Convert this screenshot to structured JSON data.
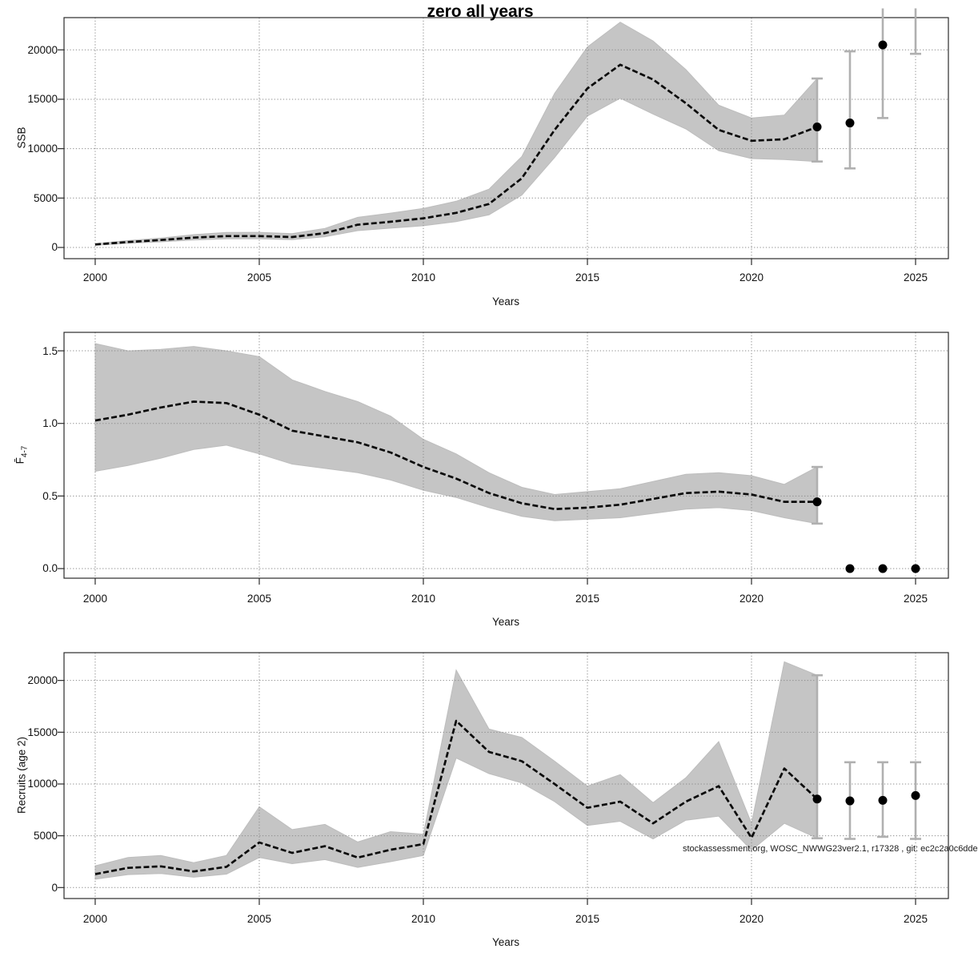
{
  "title": "zero all years",
  "watermark": "stockassessment.org, WOSC_NWWG23ver2.1, r17328 , git: ec2c2a0c6dde",
  "colors": {
    "band": "#c5c5c5",
    "band_edge": "#bdbdbd",
    "fit_line": "#0a0a0a",
    "grid": "#8c8c8c",
    "box": "#2b2b2b",
    "errorbar": "#b0b0b0",
    "point": "#000000"
  },
  "chart_data": [
    {
      "type": "line",
      "title": "",
      "ylabel": "SSB",
      "ylabel_sub": "",
      "xlabel": "Years",
      "xlim": [
        1999.05,
        2026.0
      ],
      "ylim": [
        -1135,
        23263
      ],
      "x_tick_values": [
        2000,
        2005,
        2010,
        2015,
        2020,
        2025
      ],
      "x_tick_labels": [
        "2000",
        "2005",
        "2010",
        "2015",
        "2020",
        "2025"
      ],
      "y_tick_values": [
        0,
        5000,
        10000,
        15000,
        20000
      ],
      "y_tick_labels": [
        "0",
        "5000",
        "10000",
        "15000",
        "20000"
      ],
      "grid": true,
      "years": [
        2000,
        2001,
        2002,
        2003,
        2004,
        2005,
        2006,
        2007,
        2008,
        2009,
        2010,
        2011,
        2012,
        2013,
        2014,
        2015,
        2016,
        2017,
        2018,
        2019,
        2020,
        2021,
        2022
      ],
      "fit": [
        300,
        550,
        750,
        1000,
        1150,
        1150,
        1050,
        1450,
        2300,
        2600,
        2950,
        3500,
        4400,
        7000,
        11900,
        16100,
        18500,
        17000,
        14600,
        11900,
        10800,
        10950,
        12200
      ],
      "lower": [
        230,
        420,
        570,
        760,
        870,
        870,
        790,
        1090,
        1700,
        1950,
        2200,
        2620,
        3300,
        5300,
        9100,
        13300,
        15100,
        13500,
        12000,
        9800,
        9000,
        8900,
        8700
      ],
      "upper": [
        390,
        700,
        950,
        1300,
        1520,
        1530,
        1400,
        1930,
        3050,
        3480,
        3950,
        4680,
        5900,
        9200,
        15600,
        20300,
        22800,
        20900,
        18000,
        14400,
        13100,
        13400,
        17100
      ],
      "forecast": [
        {
          "year": 2022,
          "value": 12200,
          "lo": 8700,
          "hi": 17100
        },
        {
          "year": 2023,
          "value": 12600,
          "lo": 8000,
          "hi": 19850
        },
        {
          "year": 2024,
          "value": 20500,
          "lo": 13100,
          "hi": 24200,
          "hi_open": true
        },
        {
          "year": 2025,
          "value": null,
          "lo": 19600,
          "hi": 24200,
          "hi_open": true
        }
      ]
    },
    {
      "type": "line",
      "title": "",
      "ylabel": "F̄",
      "ylabel_sub": "4-7",
      "xlabel": "Years",
      "xlim": [
        1999.05,
        2026.0
      ],
      "ylim": [
        -0.0662,
        1.6272
      ],
      "x_tick_values": [
        2000,
        2005,
        2010,
        2015,
        2020,
        2025
      ],
      "x_tick_labels": [
        "2000",
        "2005",
        "2010",
        "2015",
        "2020",
        "2025"
      ],
      "y_tick_values": [
        0.0,
        0.5,
        1.0,
        1.5
      ],
      "y_tick_labels": [
        "0.0",
        "0.5",
        "1.0",
        "1.5"
      ],
      "grid": true,
      "years": [
        2000,
        2001,
        2002,
        2003,
        2004,
        2005,
        2006,
        2007,
        2008,
        2009,
        2010,
        2011,
        2012,
        2013,
        2014,
        2015,
        2016,
        2017,
        2018,
        2019,
        2020,
        2021,
        2022
      ],
      "fit": [
        1.02,
        1.06,
        1.11,
        1.15,
        1.14,
        1.06,
        0.95,
        0.91,
        0.87,
        0.8,
        0.7,
        0.62,
        0.52,
        0.45,
        0.41,
        0.42,
        0.44,
        0.48,
        0.52,
        0.53,
        0.51,
        0.46,
        0.46
      ],
      "lower": [
        0.67,
        0.71,
        0.76,
        0.82,
        0.85,
        0.79,
        0.72,
        0.69,
        0.66,
        0.61,
        0.54,
        0.49,
        0.42,
        0.36,
        0.33,
        0.34,
        0.35,
        0.38,
        0.41,
        0.42,
        0.4,
        0.35,
        0.31
      ],
      "upper": [
        1.55,
        1.5,
        1.51,
        1.53,
        1.5,
        1.46,
        1.3,
        1.22,
        1.15,
        1.05,
        0.89,
        0.79,
        0.66,
        0.56,
        0.51,
        0.53,
        0.55,
        0.6,
        0.65,
        0.66,
        0.64,
        0.58,
        0.7
      ],
      "forecast": [
        {
          "year": 2022,
          "value": 0.46,
          "lo": 0.31,
          "hi": 0.7
        },
        {
          "year": 2023,
          "value": 0.0
        },
        {
          "year": 2024,
          "value": 0.0
        },
        {
          "year": 2025,
          "value": 0.0
        }
      ]
    },
    {
      "type": "line",
      "title": "",
      "ylabel": "Recruits (age 2)",
      "ylabel_sub": "",
      "xlabel": "Years",
      "xlim": [
        1999.05,
        2026.0
      ],
      "ylim": [
        -1060,
        22680
      ],
      "x_tick_values": [
        2000,
        2005,
        2010,
        2015,
        2020,
        2025
      ],
      "x_tick_labels": [
        "2000",
        "2005",
        "2010",
        "2015",
        "2020",
        "2025"
      ],
      "y_tick_values": [
        0,
        5000,
        10000,
        15000,
        20000
      ],
      "y_tick_labels": [
        "0",
        "5000",
        "10000",
        "15000",
        "20000"
      ],
      "grid": true,
      "years": [
        2000,
        2001,
        2002,
        2003,
        2004,
        2005,
        2006,
        2007,
        2008,
        2009,
        2010,
        2011,
        2012,
        2013,
        2014,
        2015,
        2016,
        2017,
        2018,
        2019,
        2020,
        2021,
        2022
      ],
      "fit": [
        1300,
        1900,
        2050,
        1550,
        2000,
        4350,
        3350,
        4000,
        2900,
        3650,
        4200,
        16100,
        13100,
        12200,
        10000,
        7700,
        8300,
        6200,
        8300,
        9800,
        4800,
        11500,
        8550
      ],
      "lower": [
        800,
        1250,
        1350,
        1000,
        1300,
        2900,
        2300,
        2700,
        1950,
        2500,
        3100,
        12500,
        11000,
        10100,
        8300,
        6000,
        6400,
        4700,
        6500,
        6900,
        3600,
        6200,
        4760
      ],
      "upper": [
        2100,
        2900,
        3100,
        2400,
        3100,
        7800,
        5600,
        6100,
        4400,
        5400,
        5150,
        21000,
        15300,
        14500,
        12200,
        9800,
        10900,
        8200,
        10600,
        14100,
        6200,
        21800,
        20500
      ],
      "forecast": [
        {
          "year": 2022,
          "value": 8550,
          "lo": 4760,
          "hi": 20500
        },
        {
          "year": 2023,
          "value": 8370,
          "lo": 4700,
          "hi": 12100
        },
        {
          "year": 2024,
          "value": 8420,
          "lo": 4900,
          "hi": 12100
        },
        {
          "year": 2025,
          "value": 8890,
          "lo": 4700,
          "hi": 12100
        }
      ]
    }
  ]
}
